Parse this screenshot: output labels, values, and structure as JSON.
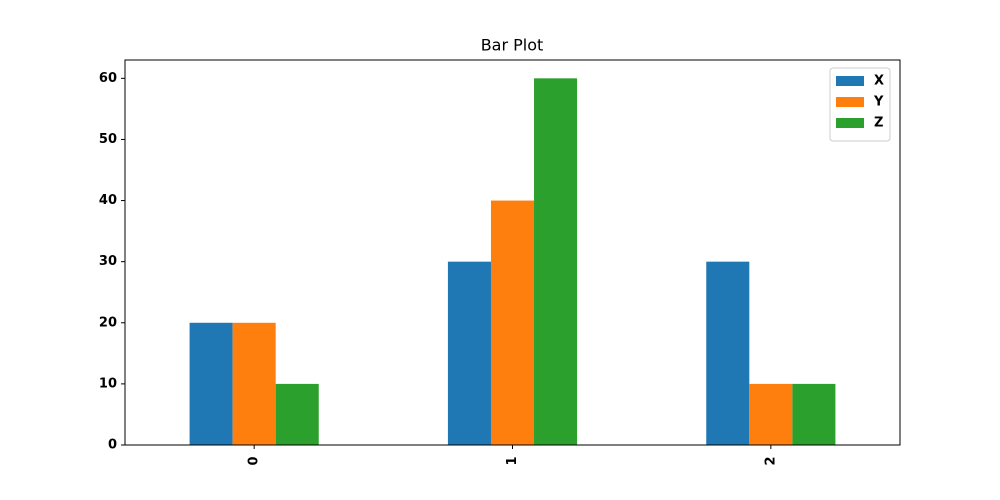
{
  "chart_data": {
    "type": "bar",
    "title": "Bar Plot",
    "categories": [
      "0",
      "1",
      "2"
    ],
    "series": [
      {
        "name": "X",
        "color": "#1f77b4",
        "values": [
          20,
          30,
          30
        ]
      },
      {
        "name": "Y",
        "color": "#ff7f0e",
        "values": [
          20,
          40,
          10
        ]
      },
      {
        "name": "Z",
        "color": "#2ca02c",
        "values": [
          10,
          60,
          10
        ]
      }
    ],
    "ylim": [
      0,
      63
    ],
    "yticks": [
      0,
      10,
      20,
      30,
      40,
      50,
      60
    ],
    "legend": "upper right"
  }
}
